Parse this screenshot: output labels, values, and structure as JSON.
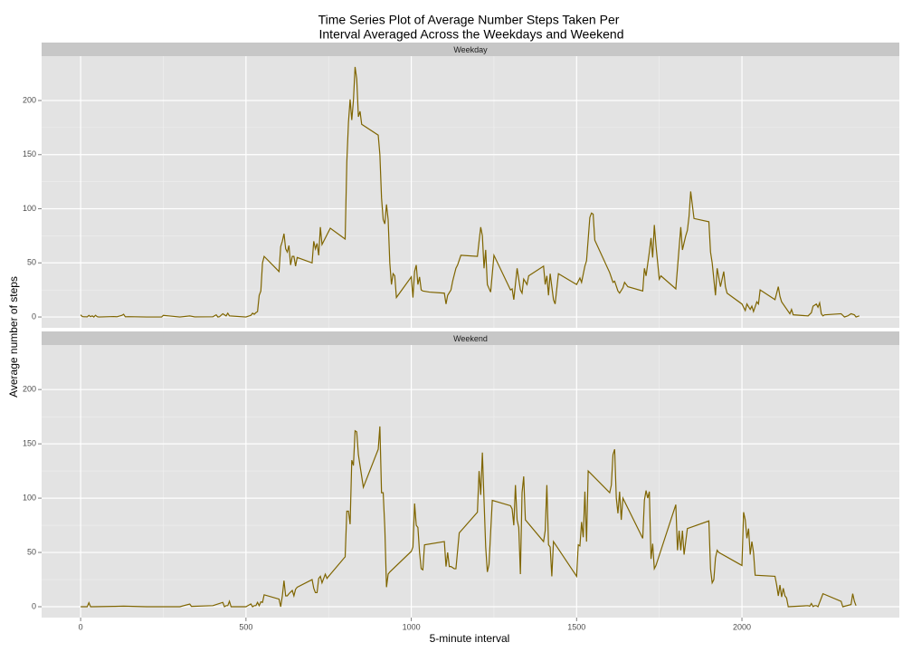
{
  "chart_data": {
    "type": "line",
    "title": [
      "Time Series Plot of Average Number Steps Taken Per",
      "Interval Averaged Across the Weekdays and Weekend"
    ],
    "xlabel": "5-minute interval",
    "ylabel": "Average number of steps",
    "xlim": [
      -118,
      2476
    ],
    "xticks": [
      0,
      500,
      1000,
      1500,
      2000
    ],
    "ylim": [
      -10,
      241
    ],
    "yticks": [
      0,
      50,
      100,
      150,
      200
    ],
    "grid": true,
    "color": "#7f6500",
    "facets": [
      {
        "name": "Weekday",
        "x": [
          0,
          5,
          10,
          15,
          20,
          25,
          30,
          35,
          40,
          45,
          50,
          55,
          100,
          110,
          125,
          130,
          135,
          145,
          200,
          245,
          250,
          300,
          330,
          345,
          400,
          410,
          415,
          420,
          430,
          440,
          445,
          450,
          500,
          515,
          520,
          525,
          530,
          535,
          540,
          545,
          550,
          555,
          600,
          605,
          610,
          615,
          620,
          625,
          630,
          635,
          640,
          645,
          650,
          655,
          700,
          705,
          710,
          715,
          720,
          725,
          730,
          755,
          800,
          805,
          810,
          815,
          820,
          825,
          830,
          835,
          840,
          845,
          850,
          900,
          905,
          910,
          915,
          920,
          925,
          930,
          935,
          940,
          945,
          950,
          955,
          1000,
          1005,
          1010,
          1015,
          1020,
          1025,
          1030,
          1035,
          1055,
          1100,
          1105,
          1110,
          1120,
          1125,
          1135,
          1140,
          1150,
          1200,
          1205,
          1210,
          1215,
          1220,
          1225,
          1230,
          1240,
          1250,
          1300,
          1305,
          1310,
          1320,
          1330,
          1335,
          1340,
          1350,
          1355,
          1400,
          1405,
          1410,
          1415,
          1420,
          1430,
          1435,
          1445,
          1500,
          1510,
          1515,
          1525,
          1530,
          1540,
          1545,
          1550,
          1555,
          1600,
          1610,
          1615,
          1625,
          1630,
          1640,
          1645,
          1655,
          1700,
          1705,
          1710,
          1720,
          1725,
          1730,
          1735,
          1740,
          1750,
          1755,
          1800,
          1815,
          1820,
          1830,
          1835,
          1840,
          1845,
          1855,
          1900,
          1905,
          1910,
          1920,
          1925,
          1935,
          1945,
          1950,
          1955,
          2000,
          2010,
          2015,
          2025,
          2030,
          2035,
          2045,
          2050,
          2055,
          2100,
          2110,
          2115,
          2120,
          2145,
          2150,
          2155,
          2200,
          2210,
          2215,
          2225,
          2230,
          2235,
          2240,
          2245,
          2250,
          2300,
          2310,
          2320,
          2330,
          2340,
          2345,
          2355
        ],
        "values": [
          2,
          0.4,
          0.2,
          0.2,
          0.1,
          1.5,
          0.3,
          1,
          0,
          1.6,
          0.3,
          0,
          0.4,
          0.2,
          1.5,
          2.5,
          0.2,
          0.3,
          0,
          0,
          1.5,
          0,
          1,
          0.1,
          0.2,
          2,
          0,
          0.3,
          3,
          1,
          3.5,
          1,
          0,
          1.5,
          3.5,
          2.5,
          4,
          5,
          20,
          24,
          50,
          56,
          42,
          65,
          70,
          77,
          63,
          60,
          66,
          48,
          56,
          56,
          47,
          55,
          50,
          70,
          63,
          68,
          57,
          83,
          67,
          82,
          72,
          143,
          180,
          201,
          182,
          200,
          231,
          220,
          185,
          190,
          178,
          168,
          150,
          110,
          90,
          86,
          104,
          90,
          50,
          30,
          40,
          38,
          18,
          37,
          18,
          42,
          48,
          30,
          37,
          25,
          24,
          23,
          22,
          12,
          20,
          25,
          33,
          45,
          48,
          57,
          56,
          70,
          83,
          75,
          45,
          62,
          30,
          23,
          57,
          25,
          26,
          16,
          45,
          25,
          22,
          35,
          30,
          38,
          47,
          30,
          38,
          20,
          40,
          16,
          12,
          40,
          30,
          36,
          32,
          47,
          52,
          92,
          96,
          95,
          71,
          41,
          32,
          33,
          24,
          22,
          27,
          32,
          28,
          24,
          45,
          38,
          60,
          73,
          55,
          85,
          66,
          35,
          38,
          26,
          83,
          62,
          75,
          80,
          93,
          116,
          91,
          88,
          60,
          50,
          20,
          45,
          28,
          42,
          28,
          22,
          12,
          6,
          12,
          7,
          10,
          5,
          14,
          12,
          25,
          16,
          28,
          19,
          14,
          3,
          7,
          2,
          1,
          4,
          10,
          12,
          9,
          13,
          3,
          1,
          2,
          3,
          0,
          1,
          3,
          2,
          0,
          1
        ]
      },
      {
        "name": "Weekend",
        "x": [
          0,
          5,
          10,
          20,
          25,
          30,
          35,
          100,
          130,
          200,
          300,
          330,
          335,
          400,
          430,
          435,
          440,
          445,
          450,
          455,
          500,
          515,
          520,
          525,
          530,
          535,
          540,
          545,
          550,
          555,
          600,
          605,
          610,
          615,
          620,
          625,
          630,
          640,
          645,
          650,
          655,
          700,
          705,
          710,
          715,
          720,
          725,
          730,
          735,
          740,
          745,
          750,
          800,
          805,
          810,
          815,
          820,
          825,
          830,
          835,
          840,
          845,
          850,
          855,
          900,
          905,
          910,
          915,
          920,
          925,
          930,
          935,
          1000,
          1005,
          1010,
          1015,
          1020,
          1025,
          1030,
          1035,
          1040,
          1100,
          1105,
          1110,
          1115,
          1120,
          1130,
          1135,
          1145,
          1200,
          1205,
          1210,
          1215,
          1220,
          1225,
          1230,
          1235,
          1245,
          1300,
          1305,
          1310,
          1315,
          1320,
          1325,
          1330,
          1335,
          1340,
          1345,
          1400,
          1405,
          1410,
          1415,
          1420,
          1425,
          1430,
          1500,
          1505,
          1510,
          1515,
          1520,
          1525,
          1530,
          1535,
          1600,
          1605,
          1610,
          1615,
          1620,
          1625,
          1630,
          1635,
          1640,
          1700,
          1705,
          1710,
          1715,
          1720,
          1725,
          1730,
          1735,
          1740,
          1800,
          1805,
          1810,
          1815,
          1820,
          1825,
          1830,
          1835,
          1900,
          1905,
          1910,
          1915,
          1920,
          1925,
          1930,
          2000,
          2005,
          2010,
          2015,
          2020,
          2025,
          2030,
          2035,
          2040,
          2100,
          2105,
          2110,
          2115,
          2120,
          2125,
          2130,
          2135,
          2140,
          2200,
          2205,
          2210,
          2215,
          2220,
          2225,
          2230,
          2245,
          2300,
          2305,
          2330,
          2335,
          2340,
          2345
        ],
        "values": [
          0,
          0,
          0,
          0,
          3.7,
          0,
          0,
          0.3,
          0.5,
          0,
          0,
          2.5,
          0.3,
          1,
          4,
          0,
          1,
          1,
          5,
          0,
          0,
          2.6,
          0,
          1,
          1,
          4,
          1,
          4.5,
          4,
          11,
          7,
          0,
          10,
          24,
          10,
          10,
          12,
          15,
          10,
          16,
          18,
          25,
          17,
          13,
          13,
          26,
          28,
          22,
          26,
          30,
          26,
          28,
          46,
          88,
          88,
          76,
          135,
          130,
          162,
          161,
          140,
          130,
          120,
          110,
          145,
          166,
          105,
          105,
          72,
          18,
          30,
          32,
          51,
          55,
          95,
          75,
          73,
          50,
          35,
          34,
          57,
          60,
          37,
          50,
          37,
          37,
          35,
          35,
          68,
          87,
          125,
          103,
          142,
          98,
          55,
          32,
          39,
          98,
          93,
          90,
          75,
          112,
          80,
          73,
          30,
          105,
          120,
          80,
          60,
          70,
          112,
          57,
          55,
          28,
          60,
          28,
          57,
          56,
          78,
          64,
          106,
          60,
          125,
          105,
          112,
          140,
          145,
          100,
          86,
          106,
          80,
          100,
          63,
          98,
          107,
          100,
          106,
          44,
          58,
          35,
          38,
          94,
          52,
          70,
          52,
          70,
          48,
          60,
          72,
          79,
          35,
          22,
          25,
          45,
          52,
          50,
          38,
          87,
          80,
          63,
          72,
          48,
          60,
          50,
          29,
          28,
          20,
          10,
          20,
          9,
          17,
          10,
          8,
          0,
          1,
          0.5,
          3,
          0.2,
          1,
          1,
          0,
          12,
          5,
          0,
          2,
          12,
          5,
          1
        ]
      }
    ]
  }
}
